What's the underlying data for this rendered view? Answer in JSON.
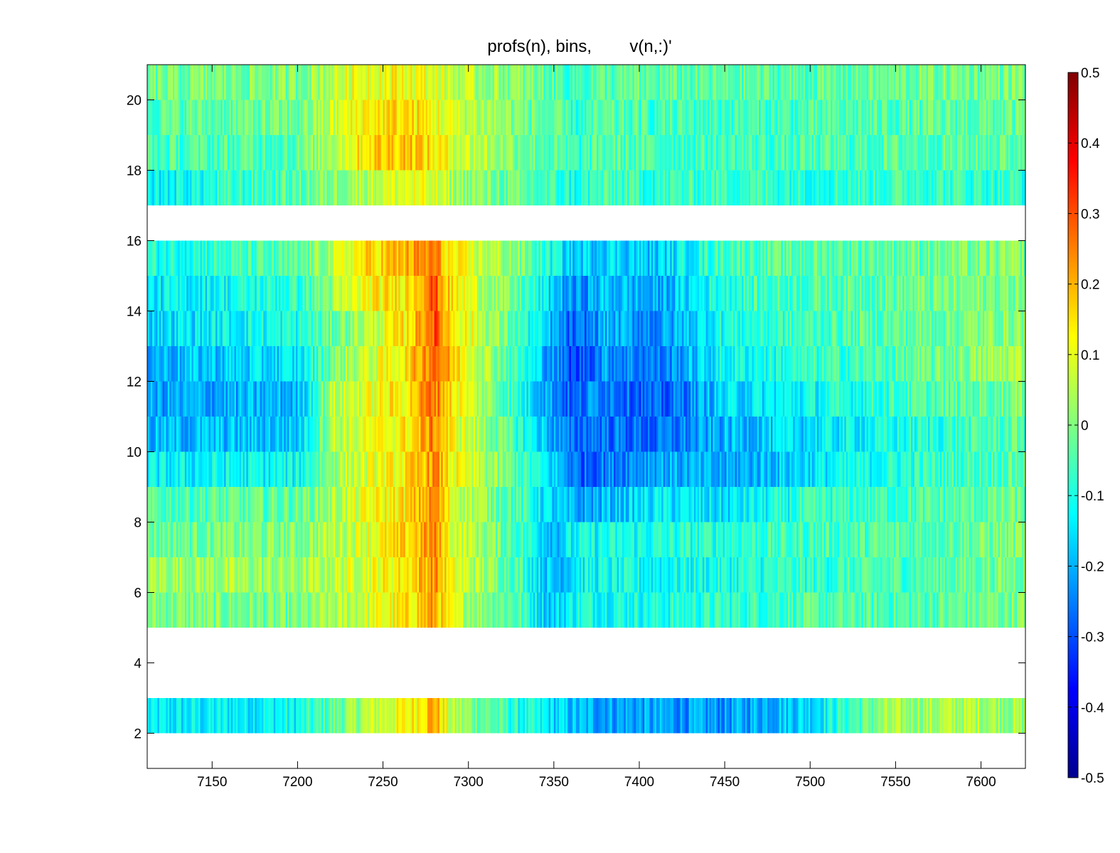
{
  "chart_data": {
    "type": "heatmap",
    "title": "profs(n), bins,        v(n,:)'",
    "xlabel": "",
    "ylabel": "",
    "x_range": [
      7112,
      7626
    ],
    "y_range": [
      1,
      21
    ],
    "xticks": [
      "7150",
      "7200",
      "7250",
      "7300",
      "7350",
      "7400",
      "7450",
      "7500",
      "7550",
      "7600"
    ],
    "yticks": [
      "2",
      "4",
      "6",
      "8",
      "10",
      "12",
      "14",
      "16",
      "18",
      "20"
    ],
    "colormap": "jet",
    "color_range": [
      -0.5,
      0.5
    ],
    "colorbar_ticks": [
      "0.5",
      "0.4",
      "0.3",
      "0.2",
      "0.1",
      "0",
      "-0.1",
      "-0.2",
      "-0.3",
      "-0.4",
      "-0.5"
    ],
    "colorbar_position": "right",
    "grid": false,
    "rows": [
      {
        "bin": 2,
        "profile": [
          [
            7112,
            -0.15
          ],
          [
            7200,
            -0.12
          ],
          [
            7240,
            0.05
          ],
          [
            7265,
            0.12
          ],
          [
            7280,
            0.22
          ],
          [
            7290,
            0.05
          ],
          [
            7330,
            -0.1
          ],
          [
            7365,
            -0.2
          ],
          [
            7410,
            -0.22
          ],
          [
            7450,
            -0.23
          ],
          [
            7500,
            -0.15
          ],
          [
            7545,
            0.02
          ],
          [
            7600,
            0.05
          ],
          [
            7626,
            0.02
          ]
        ]
      },
      {
        "bin": 3,
        "profile": null
      },
      {
        "bin": 4,
        "profile": null
      },
      {
        "bin": 5,
        "profile": [
          [
            7112,
            0.0
          ],
          [
            7200,
            -0.02
          ],
          [
            7240,
            0.08
          ],
          [
            7265,
            0.14
          ],
          [
            7280,
            0.22
          ],
          [
            7290,
            0.08
          ],
          [
            7330,
            -0.05
          ],
          [
            7348,
            -0.18
          ],
          [
            7365,
            -0.1
          ],
          [
            7410,
            -0.1
          ],
          [
            7450,
            -0.08
          ],
          [
            7500,
            -0.05
          ],
          [
            7560,
            -0.05
          ],
          [
            7626,
            0.0
          ]
        ]
      },
      {
        "bin": 6,
        "profile": [
          [
            7112,
            0.04
          ],
          [
            7200,
            0.02
          ],
          [
            7240,
            0.1
          ],
          [
            7265,
            0.15
          ],
          [
            7280,
            0.24
          ],
          [
            7290,
            0.1
          ],
          [
            7330,
            -0.05
          ],
          [
            7350,
            -0.2
          ],
          [
            7365,
            -0.12
          ],
          [
            7410,
            -0.12
          ],
          [
            7450,
            -0.1
          ],
          [
            7500,
            -0.08
          ],
          [
            7560,
            -0.05
          ],
          [
            7626,
            0.0
          ]
        ]
      },
      {
        "bin": 7,
        "profile": [
          [
            7112,
            -0.02
          ],
          [
            7200,
            0.0
          ],
          [
            7240,
            0.1
          ],
          [
            7265,
            0.16
          ],
          [
            7280,
            0.24
          ],
          [
            7290,
            0.1
          ],
          [
            7330,
            -0.06
          ],
          [
            7350,
            -0.18
          ],
          [
            7365,
            -0.12
          ],
          [
            7410,
            -0.1
          ],
          [
            7450,
            -0.08
          ],
          [
            7500,
            -0.06
          ],
          [
            7560,
            -0.04
          ],
          [
            7626,
            0.0
          ]
        ]
      },
      {
        "bin": 8,
        "profile": [
          [
            7112,
            -0.05
          ],
          [
            7200,
            -0.03
          ],
          [
            7240,
            0.1
          ],
          [
            7265,
            0.15
          ],
          [
            7280,
            0.24
          ],
          [
            7290,
            0.1
          ],
          [
            7330,
            -0.06
          ],
          [
            7355,
            -0.2
          ],
          [
            7365,
            -0.22
          ],
          [
            7410,
            -0.14
          ],
          [
            7450,
            -0.16
          ],
          [
            7500,
            -0.08
          ],
          [
            7560,
            -0.06
          ],
          [
            7626,
            -0.02
          ]
        ]
      },
      {
        "bin": 9,
        "profile": [
          [
            7112,
            -0.14
          ],
          [
            7200,
            -0.12
          ],
          [
            7225,
            0.05
          ],
          [
            7265,
            0.14
          ],
          [
            7280,
            0.24
          ],
          [
            7290,
            0.12
          ],
          [
            7330,
            -0.05
          ],
          [
            7355,
            -0.2
          ],
          [
            7365,
            -0.28
          ],
          [
            7410,
            -0.2
          ],
          [
            7450,
            -0.22
          ],
          [
            7500,
            -0.15
          ],
          [
            7560,
            -0.08
          ],
          [
            7626,
            -0.03
          ]
        ]
      },
      {
        "bin": 10,
        "profile": [
          [
            7112,
            -0.2
          ],
          [
            7200,
            -0.18
          ],
          [
            7220,
            0.05
          ],
          [
            7265,
            0.14
          ],
          [
            7280,
            0.25
          ],
          [
            7290,
            0.12
          ],
          [
            7330,
            -0.08
          ],
          [
            7360,
            -0.28
          ],
          [
            7370,
            -0.25
          ],
          [
            7410,
            -0.28
          ],
          [
            7450,
            -0.2
          ],
          [
            7500,
            -0.15
          ],
          [
            7560,
            -0.1
          ],
          [
            7626,
            -0.03
          ]
        ]
      },
      {
        "bin": 11,
        "profile": [
          [
            7112,
            -0.22
          ],
          [
            7200,
            -0.2
          ],
          [
            7220,
            0.05
          ],
          [
            7265,
            0.15
          ],
          [
            7280,
            0.28
          ],
          [
            7290,
            0.15
          ],
          [
            7330,
            -0.1
          ],
          [
            7362,
            -0.3
          ],
          [
            7375,
            -0.22
          ],
          [
            7412,
            -0.3
          ],
          [
            7450,
            -0.16
          ],
          [
            7500,
            -0.12
          ],
          [
            7560,
            -0.06
          ],
          [
            7626,
            0.0
          ]
        ]
      },
      {
        "bin": 12,
        "profile": [
          [
            7112,
            -0.2
          ],
          [
            7200,
            -0.15
          ],
          [
            7225,
            0.02
          ],
          [
            7265,
            0.15
          ],
          [
            7280,
            0.3
          ],
          [
            7290,
            0.18
          ],
          [
            7330,
            -0.08
          ],
          [
            7362,
            -0.32
          ],
          [
            7380,
            -0.22
          ],
          [
            7412,
            -0.26
          ],
          [
            7450,
            -0.12
          ],
          [
            7500,
            -0.08
          ],
          [
            7560,
            -0.04
          ],
          [
            7626,
            0.05
          ]
        ]
      },
      {
        "bin": 13,
        "profile": [
          [
            7112,
            -0.16
          ],
          [
            7200,
            -0.1
          ],
          [
            7240,
            0.05
          ],
          [
            7265,
            0.15
          ],
          [
            7280,
            0.3
          ],
          [
            7290,
            0.16
          ],
          [
            7330,
            -0.06
          ],
          [
            7362,
            -0.3
          ],
          [
            7380,
            -0.2
          ],
          [
            7410,
            -0.24
          ],
          [
            7450,
            -0.1
          ],
          [
            7500,
            -0.06
          ],
          [
            7560,
            -0.03
          ],
          [
            7626,
            0.02
          ]
        ]
      },
      {
        "bin": 14,
        "profile": [
          [
            7112,
            -0.15
          ],
          [
            7200,
            -0.08
          ],
          [
            7240,
            0.12
          ],
          [
            7265,
            0.16
          ],
          [
            7280,
            0.3
          ],
          [
            7290,
            0.14
          ],
          [
            7330,
            -0.04
          ],
          [
            7362,
            -0.25
          ],
          [
            7380,
            -0.18
          ],
          [
            7410,
            -0.22
          ],
          [
            7450,
            -0.08
          ],
          [
            7500,
            -0.05
          ],
          [
            7560,
            -0.02
          ],
          [
            7626,
            0.0
          ]
        ]
      },
      {
        "bin": 15,
        "profile": [
          [
            7112,
            -0.1
          ],
          [
            7200,
            -0.05
          ],
          [
            7240,
            0.15
          ],
          [
            7265,
            0.2
          ],
          [
            7280,
            0.25
          ],
          [
            7290,
            0.12
          ],
          [
            7330,
            0.0
          ],
          [
            7362,
            -0.18
          ],
          [
            7380,
            -0.15
          ],
          [
            7410,
            -0.18
          ],
          [
            7450,
            -0.05
          ],
          [
            7500,
            -0.04
          ],
          [
            7560,
            -0.02
          ],
          [
            7626,
            0.0
          ]
        ]
      },
      {
        "bin": 16,
        "profile": null
      },
      {
        "bin": 17,
        "profile": [
          [
            7112,
            -0.14
          ],
          [
            7200,
            -0.04
          ],
          [
            7240,
            0.06
          ],
          [
            7265,
            0.1
          ],
          [
            7280,
            0.08
          ],
          [
            7290,
            0.04
          ],
          [
            7330,
            -0.04
          ],
          [
            7362,
            -0.1
          ],
          [
            7380,
            -0.06
          ],
          [
            7410,
            -0.08
          ],
          [
            7450,
            -0.06
          ],
          [
            7500,
            -0.08
          ],
          [
            7560,
            -0.06
          ],
          [
            7626,
            -0.08
          ]
        ]
      },
      {
        "bin": 18,
        "profile": [
          [
            7112,
            -0.06
          ],
          [
            7200,
            -0.04
          ],
          [
            7240,
            0.16
          ],
          [
            7265,
            0.2
          ],
          [
            7280,
            0.14
          ],
          [
            7290,
            0.1
          ],
          [
            7330,
            0.0
          ],
          [
            7362,
            -0.08
          ],
          [
            7380,
            -0.04
          ],
          [
            7410,
            -0.06
          ],
          [
            7450,
            -0.06
          ],
          [
            7500,
            -0.06
          ],
          [
            7560,
            -0.04
          ],
          [
            7626,
            -0.03
          ]
        ]
      },
      {
        "bin": 19,
        "profile": [
          [
            7112,
            -0.04
          ],
          [
            7200,
            -0.02
          ],
          [
            7240,
            0.14
          ],
          [
            7265,
            0.16
          ],
          [
            7280,
            0.12
          ],
          [
            7290,
            0.08
          ],
          [
            7330,
            0.0
          ],
          [
            7362,
            -0.08
          ],
          [
            7380,
            -0.05
          ],
          [
            7410,
            -0.06
          ],
          [
            7450,
            -0.06
          ],
          [
            7500,
            -0.06
          ],
          [
            7560,
            -0.04
          ],
          [
            7626,
            -0.03
          ]
        ]
      },
      {
        "bin": 20,
        "profile": [
          [
            7112,
            -0.02
          ],
          [
            7200,
            0.0
          ],
          [
            7240,
            0.12
          ],
          [
            7265,
            0.12
          ],
          [
            7280,
            0.1
          ],
          [
            7290,
            0.06
          ],
          [
            7330,
            0.0
          ],
          [
            7362,
            -0.06
          ],
          [
            7380,
            -0.04
          ],
          [
            7410,
            -0.04
          ],
          [
            7450,
            -0.04
          ],
          [
            7500,
            -0.04
          ],
          [
            7560,
            -0.02
          ],
          [
            7626,
            0.0
          ]
        ]
      }
    ]
  }
}
